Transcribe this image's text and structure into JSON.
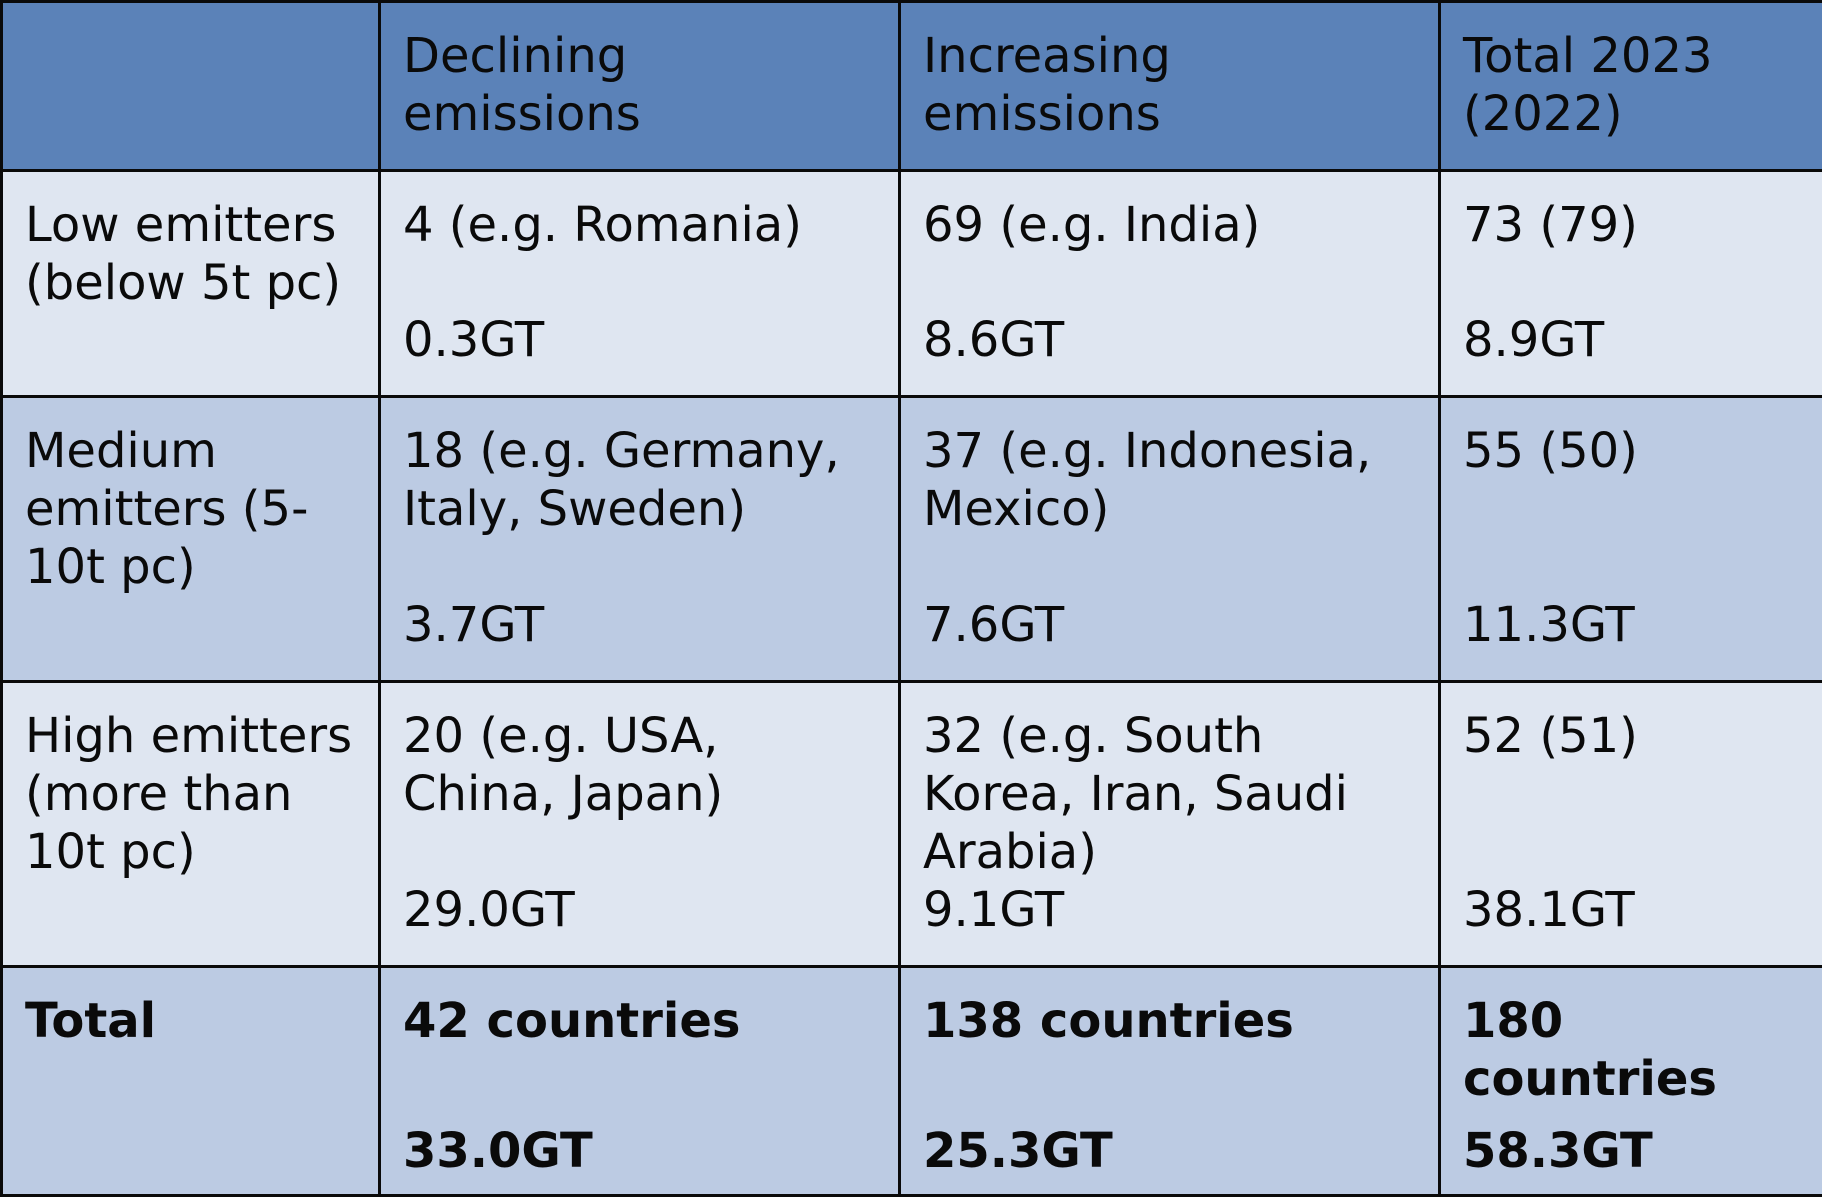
{
  "header": {
    "col0": "",
    "col1": "Declining emissions",
    "col2": "Increasing emissions",
    "col3": "Total 2023 (2022)"
  },
  "rows": [
    {
      "label": "Low emitters (below 5t pc)",
      "declining": {
        "count": "4 (e.g. Romania)",
        "gt": "0.3GT"
      },
      "increasing": {
        "count": "69 (e.g. India)",
        "gt": "8.6GT"
      },
      "total": {
        "count": "73 (79)",
        "gt": "8.9GT"
      }
    },
    {
      "label": "Medium emitters (5-10t pc)",
      "declining": {
        "count": "18 (e.g. Germany, Italy, Sweden)",
        "gt": "3.7GT"
      },
      "increasing": {
        "count": "37 (e.g. Indonesia, Mexico)",
        "gt": "7.6GT"
      },
      "total": {
        "count": "55 (50)",
        "gt": "11.3GT"
      }
    },
    {
      "label": "High emitters (more than 10t pc)",
      "declining": {
        "count": "20 (e.g. USA, China, Japan)",
        "gt": "29.0GT"
      },
      "increasing": {
        "count": "32 (e.g. South Korea, Iran, Saudi Arabia)",
        "gt": "9.1GT"
      },
      "total": {
        "count": "52 (51)",
        "gt": "38.1GT"
      }
    }
  ],
  "total_row": {
    "label": "Total",
    "declining": {
      "count": "42 countries",
      "gt": "33.0GT"
    },
    "increasing": {
      "count": "138 countries",
      "gt": "25.3GT"
    },
    "total": {
      "count": "180 countries",
      "gt": "58.3GT"
    }
  },
  "colors": {
    "header_bg": "#5b82b8",
    "row_light": "#dfe6f1",
    "row_mid": "#bccbe3",
    "border": "#0a0a0a"
  }
}
